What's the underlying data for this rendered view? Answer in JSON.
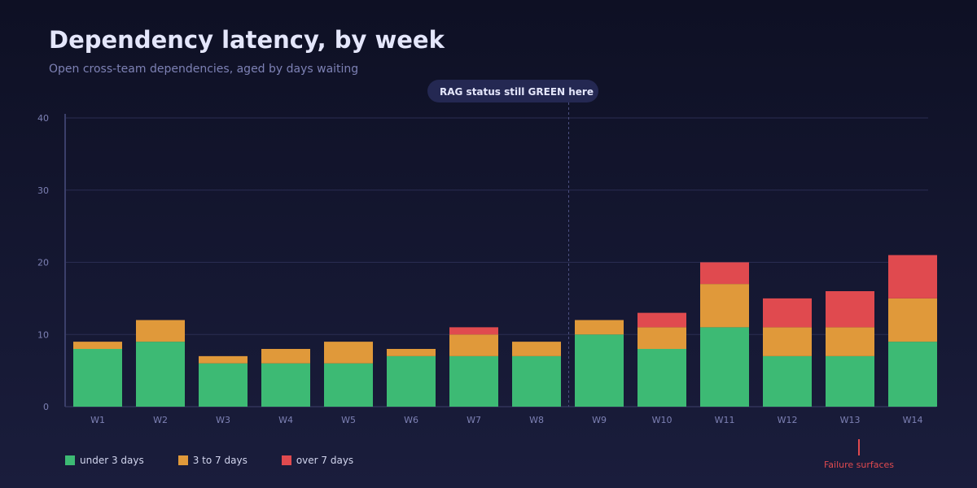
{
  "title": "Dependency latency, by week",
  "subtitle": "Open cross-team dependencies, aged by days waiting",
  "annotations": {
    "callout": "RAG status still GREEN here",
    "failure": "Failure surfaces"
  },
  "colors": {
    "under": "#3dba74",
    "mid": "#e0993a",
    "over": "#e04a4f",
    "axis": "#7d81b4"
  },
  "chart_data": {
    "type": "bar",
    "stacked": true,
    "title": "Dependency latency, by week",
    "subtitle": "Open cross-team dependencies, aged by days waiting",
    "xlabel": "",
    "ylabel": "",
    "ylim": [
      0,
      40
    ],
    "yticks": [
      0,
      10,
      20,
      30,
      40
    ],
    "grid": true,
    "legend_position": "bottom-left",
    "categories": [
      "W1",
      "W2",
      "W3",
      "W4",
      "W5",
      "W6",
      "W7",
      "W8",
      "W9",
      "W10",
      "W11",
      "W12",
      "W13",
      "W14"
    ],
    "series": [
      {
        "name": "under 3 days",
        "values": [
          8,
          9,
          6,
          6,
          6,
          7,
          7,
          7,
          10,
          8,
          11,
          7,
          7,
          9
        ]
      },
      {
        "name": "3 to 7 days",
        "values": [
          1,
          3,
          1,
          2,
          3,
          1,
          3,
          2,
          2,
          3,
          6,
          4,
          4,
          6
        ]
      },
      {
        "name": "over 7 days",
        "values": [
          0,
          0,
          0,
          0,
          0,
          0,
          1,
          0,
          0,
          2,
          3,
          4,
          5,
          6
        ]
      }
    ],
    "marker_after_category": "W8"
  }
}
